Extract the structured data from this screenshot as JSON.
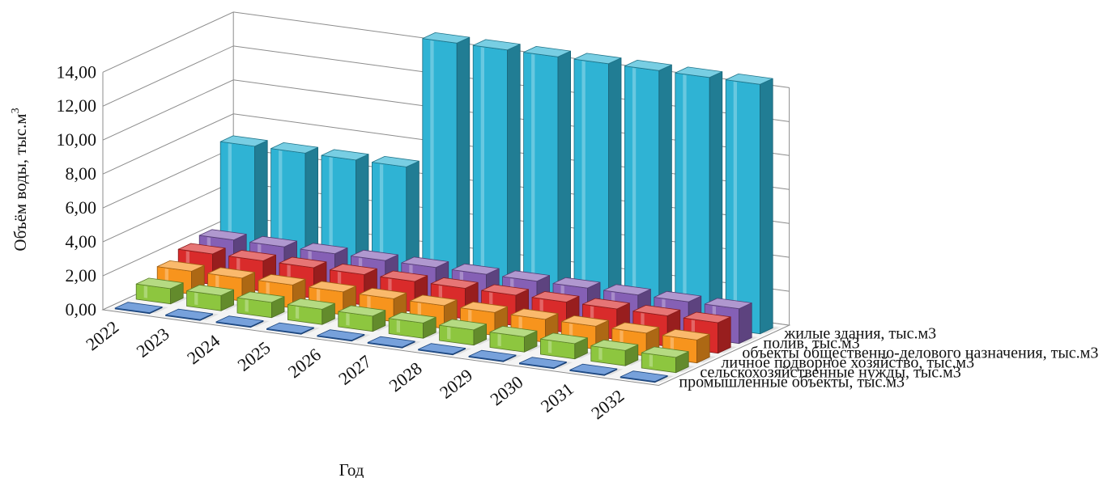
{
  "chart_data": {
    "type": "bar3d",
    "categories": [
      "2022",
      "2023",
      "2024",
      "2025",
      "2026",
      "2027",
      "2028",
      "2029",
      "2030",
      "2031",
      "2032"
    ],
    "series": [
      {
        "name": "промышленные объекты, тыс.м3",
        "color": "#2e6fc7",
        "values": [
          0.05,
          0.05,
          0.05,
          0.05,
          0.05,
          0.05,
          0.05,
          0.05,
          0.05,
          0.05,
          0.05
        ]
      },
      {
        "name": "сельскохозяйственные нужды, тыс.м3",
        "color": "#8dc63f",
        "values": [
          0.9,
          0.9,
          0.9,
          0.9,
          0.9,
          0.9,
          0.9,
          0.9,
          0.9,
          0.9,
          0.9
        ]
      },
      {
        "name": "личное подворное хозяйство, тыс.м3",
        "color": "#f7941d",
        "values": [
          1.35,
          1.35,
          1.35,
          1.35,
          1.35,
          1.35,
          1.35,
          1.35,
          1.35,
          1.35,
          1.35
        ]
      },
      {
        "name": "объекты общественно-делового назначения, тыс.м3",
        "color": "#d92b2b",
        "values": [
          1.8,
          1.8,
          1.8,
          1.8,
          1.8,
          1.8,
          1.8,
          1.8,
          1.8,
          1.8,
          1.8
        ]
      },
      {
        "name": "полив, тыс.м3",
        "color": "#8560b5",
        "values": [
          2.05,
          2.05,
          2.05,
          2.05,
          2.05,
          2.05,
          2.05,
          2.05,
          2.05,
          2.05,
          2.05
        ]
      },
      {
        "name": "жилые здания, тыс.м3",
        "color": "#2fb3d4",
        "values": [
          7.0,
          7.0,
          7.0,
          7.0,
          14.7,
          14.7,
          14.7,
          14.7,
          14.7,
          14.7,
          14.7
        ]
      }
    ],
    "y_ticks": [
      "0,00",
      "2,00",
      "4,00",
      "6,00",
      "8,00",
      "10,00",
      "12,00",
      "14,00"
    ],
    "ylim": [
      0,
      14
    ],
    "xlabel": "Год",
    "ylabel_main": "Объём воды, тыс.м",
    "ylabel_sup": "3",
    "grid": true,
    "legend": "series labels along the depth axis"
  }
}
